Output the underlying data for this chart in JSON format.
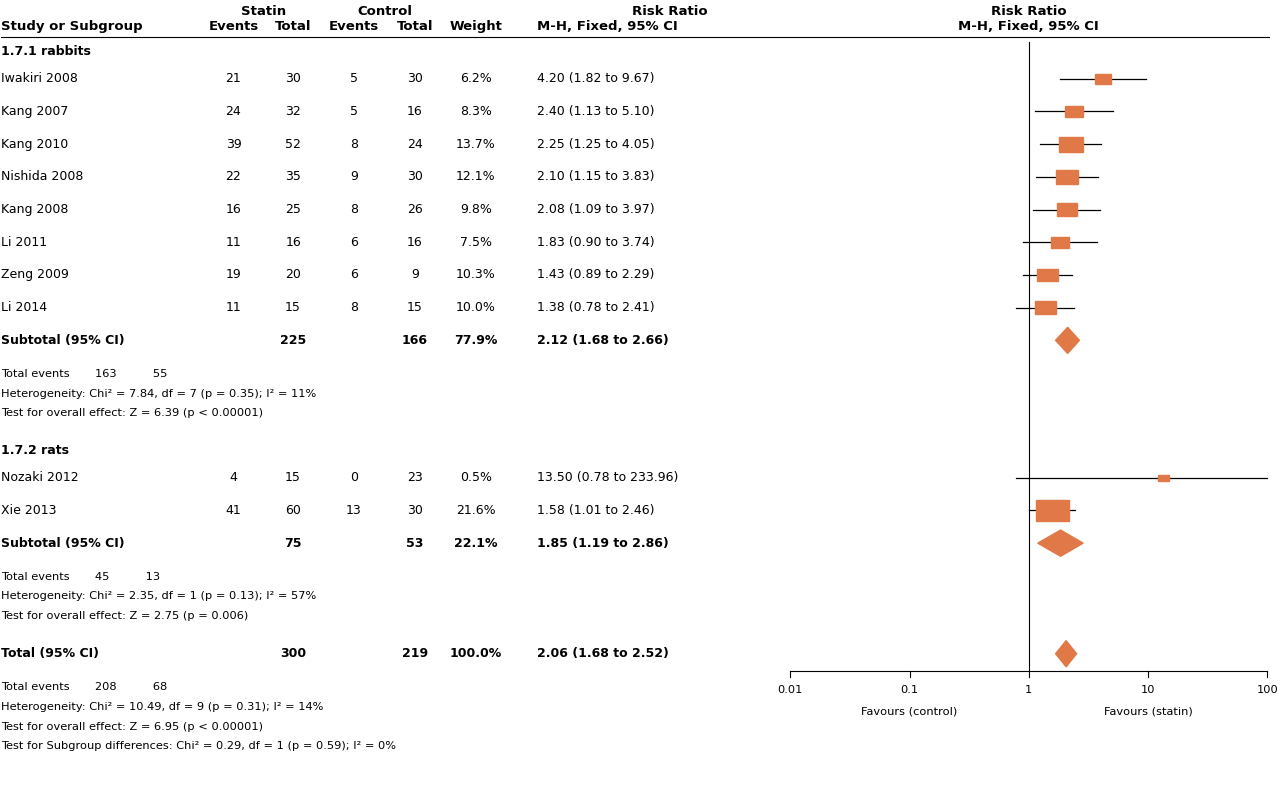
{
  "subgroup1_label": "1.7.1 rabbits",
  "subgroup2_label": "1.7.2 rats",
  "studies": [
    {
      "name": "Iwakiri 2008",
      "s_events": 21,
      "s_total": 30,
      "c_events": 5,
      "c_total": 30,
      "weight": "6.2%",
      "rr": 4.2,
      "ci_lo": 1.82,
      "ci_hi": 9.67,
      "rr_text": "4.20 (1.82 to 9.67)",
      "group": 1,
      "is_subtotal": false
    },
    {
      "name": "Kang 2007",
      "s_events": 24,
      "s_total": 32,
      "c_events": 5,
      "c_total": 16,
      "weight": "8.3%",
      "rr": 2.4,
      "ci_lo": 1.13,
      "ci_hi": 5.1,
      "rr_text": "2.40 (1.13 to 5.10)",
      "group": 1,
      "is_subtotal": false
    },
    {
      "name": "Kang 2010",
      "s_events": 39,
      "s_total": 52,
      "c_events": 8,
      "c_total": 24,
      "weight": "13.7%",
      "rr": 2.25,
      "ci_lo": 1.25,
      "ci_hi": 4.05,
      "rr_text": "2.25 (1.25 to 4.05)",
      "group": 1,
      "is_subtotal": false
    },
    {
      "name": "Nishida 2008",
      "s_events": 22,
      "s_total": 35,
      "c_events": 9,
      "c_total": 30,
      "weight": "12.1%",
      "rr": 2.1,
      "ci_lo": 1.15,
      "ci_hi": 3.83,
      "rr_text": "2.10 (1.15 to 3.83)",
      "group": 1,
      "is_subtotal": false
    },
    {
      "name": "Kang 2008",
      "s_events": 16,
      "s_total": 25,
      "c_events": 8,
      "c_total": 26,
      "weight": "9.8%",
      "rr": 2.08,
      "ci_lo": 1.09,
      "ci_hi": 3.97,
      "rr_text": "2.08 (1.09 to 3.97)",
      "group": 1,
      "is_subtotal": false
    },
    {
      "name": "Li 2011",
      "s_events": 11,
      "s_total": 16,
      "c_events": 6,
      "c_total": 16,
      "weight": "7.5%",
      "rr": 1.83,
      "ci_lo": 0.9,
      "ci_hi": 3.74,
      "rr_text": "1.83 (0.90 to 3.74)",
      "group": 1,
      "is_subtotal": false
    },
    {
      "name": "Zeng 2009",
      "s_events": 19,
      "s_total": 20,
      "c_events": 6,
      "c_total": 9,
      "weight": "10.3%",
      "rr": 1.43,
      "ci_lo": 0.89,
      "ci_hi": 2.29,
      "rr_text": "1.43 (0.89 to 2.29)",
      "group": 1,
      "is_subtotal": false
    },
    {
      "name": "Li 2014",
      "s_events": 11,
      "s_total": 15,
      "c_events": 8,
      "c_total": 15,
      "weight": "10.0%",
      "rr": 1.38,
      "ci_lo": 0.78,
      "ci_hi": 2.41,
      "rr_text": "1.38 (0.78 to 2.41)",
      "group": 1,
      "is_subtotal": false
    },
    {
      "name": "Subtotal (95% CI)",
      "s_events": null,
      "s_total": 225,
      "c_events": null,
      "c_total": 166,
      "weight": "77.9%",
      "rr": 2.12,
      "ci_lo": 1.68,
      "ci_hi": 2.66,
      "rr_text": "2.12 (1.68 to 2.66)",
      "group": 1,
      "is_subtotal": true
    },
    {
      "name": "Nozaki 2012",
      "s_events": 4,
      "s_total": 15,
      "c_events": 0,
      "c_total": 23,
      "weight": "0.5%",
      "rr": 13.5,
      "ci_lo": 0.78,
      "ci_hi": 233.96,
      "rr_text": "13.50 (0.78 to 233.96)",
      "group": 2,
      "is_subtotal": false
    },
    {
      "name": "Xie 2013",
      "s_events": 41,
      "s_total": 60,
      "c_events": 13,
      "c_total": 30,
      "weight": "21.6%",
      "rr": 1.58,
      "ci_lo": 1.01,
      "ci_hi": 2.46,
      "rr_text": "1.58 (1.01 to 2.46)",
      "group": 2,
      "is_subtotal": false
    },
    {
      "name": "Subtotal (95% CI)",
      "s_events": null,
      "s_total": 75,
      "c_events": null,
      "c_total": 53,
      "weight": "22.1%",
      "rr": 1.85,
      "ci_lo": 1.19,
      "ci_hi": 2.86,
      "rr_text": "1.85 (1.19 to 2.86)",
      "group": 2,
      "is_subtotal": true
    }
  ],
  "total": {
    "name": "Total (95% CI)",
    "s_total": 300,
    "c_total": 219,
    "weight": "100.0%",
    "rr": 2.06,
    "ci_lo": 1.68,
    "ci_hi": 2.52,
    "rr_text": "2.06 (1.68 to 2.52)"
  },
  "stats_rabbits": [
    "Total events       163          55",
    "Heterogeneity: Chi² = 7.84, df = 7 (p = 0.35); I² = 11%",
    "Test for overall effect: Z = 6.39 (p < 0.00001)"
  ],
  "stats_rats": [
    "Total events       45          13",
    "Heterogeneity: Chi² = 2.35, df = 1 (p = 0.13); I² = 57%",
    "Test for overall effect: Z = 2.75 (p = 0.006)"
  ],
  "stats_total": [
    "Total events       208          68",
    "Heterogeneity: Chi² = 10.49, df = 9 (p = 0.31); I² = 14%",
    "Test for overall effect: Z = 6.95 (p < 0.00001)",
    "Test for Subgroup differences: Chi² = 0.29, df = 1 (p = 0.59); I² = 0%"
  ],
  "axis_ticks": [
    0.01,
    0.1,
    1,
    10,
    100
  ],
  "axis_labels": [
    "0.01",
    "0.1",
    "1",
    "10",
    "100"
  ],
  "xlabel_left": "Favours (control)",
  "xlabel_right": "Favours (statin)",
  "diamond_color": "#E07848",
  "square_color": "#E07848"
}
